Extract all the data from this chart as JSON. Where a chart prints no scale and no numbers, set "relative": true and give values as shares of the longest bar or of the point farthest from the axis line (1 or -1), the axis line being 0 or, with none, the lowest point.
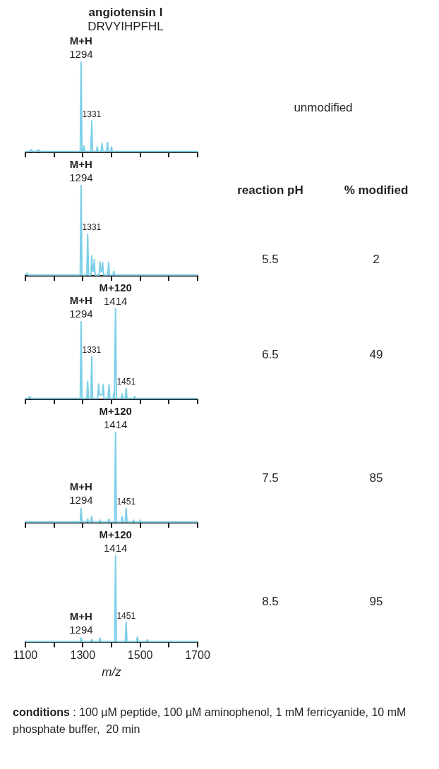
{
  "chart_data": [
    {
      "type": "line",
      "title": "angiotensin I",
      "subtitle": "DRVYIHPFHL",
      "relative": true,
      "xlim": [
        1100,
        1700
      ],
      "xticks": [
        1100,
        1200,
        1300,
        1400,
        1500,
        1600,
        1700
      ],
      "tick_labels": false,
      "series": [
        {
          "color": "#7ccfe8",
          "x": [
            1100,
            1115,
            1120,
            1125,
            1140,
            1145,
            1150,
            1291,
            1294,
            1297,
            1301,
            1304,
            1307,
            1328,
            1331,
            1334,
            1347,
            1350,
            1353,
            1364,
            1367,
            1370,
            1383,
            1386,
            1389,
            1397,
            1400,
            1403,
            1420,
            1700
          ],
          "values": [
            0.01,
            0.01,
            0.03,
            0.01,
            0.01,
            0.03,
            0.01,
            0.01,
            1,
            0.01,
            0.01,
            0.07,
            0.01,
            0.01,
            0.35,
            0.01,
            0.01,
            0.06,
            0.01,
            0.01,
            0.1,
            0.01,
            0.01,
            0.11,
            0.01,
            0.01,
            0.06,
            0.01,
            0.01,
            0.01
          ]
        }
      ],
      "annotations": [
        {
          "text": "M+H",
          "x": 1294,
          "y": 1
        },
        {
          "text": "1294",
          "x": 1294,
          "y": 1
        },
        {
          "text": "1331",
          "x": 1331,
          "y": 0.35
        },
        "unmodified"
      ]
    },
    {
      "type": "line",
      "relative": true,
      "xlim": [
        1100,
        1700
      ],
      "xticks": [
        1100,
        1200,
        1300,
        1400,
        1500,
        1600,
        1700
      ],
      "tick_labels": false,
      "series": [
        {
          "color": "#7ccfe8",
          "x": [
            1100,
            1105,
            1110,
            1115,
            1291,
            1294,
            1297,
            1314,
            1317,
            1320,
            1328,
            1331,
            1334,
            1337,
            1340,
            1343,
            1357,
            1360,
            1363,
            1366,
            1369,
            1372,
            1387,
            1390,
            1393,
            1405,
            1408,
            1411,
            1430,
            1700
          ],
          "values": [
            0.01,
            0.03,
            0.01,
            0.01,
            0.01,
            1,
            0.01,
            0.01,
            0.46,
            0.01,
            0.01,
            0.22,
            0.05,
            0.05,
            0.18,
            0.01,
            0.01,
            0.15,
            0.05,
            0.05,
            0.15,
            0.01,
            0.01,
            0.15,
            0.01,
            0.01,
            0.05,
            0.01,
            0.01,
            0.01
          ]
        }
      ],
      "annotations": [
        {
          "text": "M+H",
          "x": 1294,
          "y": 1
        },
        {
          "text": "1294",
          "x": 1294,
          "y": 1
        },
        {
          "text": "1331",
          "x": 1331,
          "y": 0.46
        },
        "reaction pH",
        "% modified",
        "5.5",
        "2"
      ]
    },
    {
      "type": "line",
      "relative": true,
      "xlim": [
        1100,
        1700
      ],
      "xticks": [
        1100,
        1200,
        1300,
        1400,
        1500,
        1600,
        1700
      ],
      "tick_labels": false,
      "series": [
        {
          "color": "#7ccfe8",
          "x": [
            1100,
            1110,
            1115,
            1120,
            1291,
            1294,
            1297,
            1314,
            1317,
            1320,
            1328,
            1331,
            1334,
            1352,
            1355,
            1358,
            1368,
            1371,
            1374,
            1388,
            1391,
            1394,
            1406,
            1408,
            1410,
            1411,
            1414,
            1417,
            1434,
            1437,
            1440,
            1448,
            1451,
            1454,
            1477,
            1480,
            1483,
            1700
          ],
          "values": [
            0.01,
            0.01,
            0.03,
            0.01,
            0.01,
            0.86,
            0.01,
            0.01,
            0.2,
            0.01,
            0.01,
            0.47,
            0.01,
            0.01,
            0.17,
            0.05,
            0.05,
            0.16,
            0.01,
            0.01,
            0.16,
            0.01,
            0.01,
            0.07,
            0.01,
            0.01,
            1,
            0.01,
            0.01,
            0.06,
            0.01,
            0.01,
            0.12,
            0.01,
            0.01,
            0.03,
            0.01,
            0.01
          ]
        }
      ],
      "annotations": [
        {
          "text": "M+H",
          "x": 1294,
          "y": 0.86
        },
        {
          "text": "1294",
          "x": 1294,
          "y": 0.86
        },
        {
          "text": "M+120",
          "x": 1414,
          "y": 1
        },
        {
          "text": "1414",
          "x": 1414,
          "y": 1
        },
        {
          "text": "1331",
          "x": 1331,
          "y": 0.47
        },
        {
          "text": "1451",
          "x": 1451,
          "y": 0.12
        },
        "6.5",
        "49"
      ]
    },
    {
      "type": "line",
      "relative": true,
      "xlim": [
        1100,
        1700
      ],
      "xticks": [
        1100,
        1200,
        1300,
        1400,
        1500,
        1600,
        1700
      ],
      "tick_labels": false,
      "series": [
        {
          "color": "#7ccfe8",
          "x": [
            1100,
            1291,
            1294,
            1297,
            1314,
            1317,
            1320,
            1328,
            1331,
            1334,
            1357,
            1360,
            1363,
            1388,
            1391,
            1394,
            1411,
            1414,
            1417,
            1434,
            1437,
            1440,
            1448,
            1451,
            1454,
            1474,
            1477,
            1480,
            1497,
            1500,
            1503,
            1700
          ],
          "values": [
            0.01,
            0.01,
            0.16,
            0.01,
            0.01,
            0.04,
            0.01,
            0.01,
            0.07,
            0.01,
            0.01,
            0.03,
            0.01,
            0.01,
            0.04,
            0.01,
            0.01,
            1,
            0.01,
            0.01,
            0.07,
            0.01,
            0.01,
            0.16,
            0.01,
            0.01,
            0.03,
            0.01,
            0.01,
            0.03,
            0.01,
            0.01
          ]
        }
      ],
      "annotations": [
        {
          "text": "M+H",
          "x": 1294,
          "y": 0.16
        },
        {
          "text": "1294",
          "x": 1294,
          "y": 0.16
        },
        {
          "text": "M+120",
          "x": 1414,
          "y": 1
        },
        {
          "text": "1414",
          "x": 1414,
          "y": 1
        },
        {
          "text": "1451",
          "x": 1451,
          "y": 0.16
        },
        "7.5",
        "85"
      ]
    },
    {
      "type": "line",
      "relative": true,
      "xlim": [
        1100,
        1700
      ],
      "xticks": [
        1100,
        {
          "value": 1200,
          "label": null
        },
        1300,
        {
          "value": 1400,
          "label": null
        },
        1500,
        {
          "value": 1600,
          "label": null
        },
        1700
      ],
      "tick_labels": "x",
      "xlabel": "m/z",
      "series": [
        {
          "color": "#7ccfe8",
          "x": [
            1100,
            1291,
            1294,
            1297,
            1328,
            1331,
            1334,
            1357,
            1360,
            1363,
            1411,
            1414,
            1417,
            1448,
            1451,
            1454,
            1487,
            1490,
            1493,
            1522,
            1525,
            1528,
            1700
          ],
          "values": [
            0.01,
            0.01,
            0.05,
            0.01,
            0.01,
            0.03,
            0.01,
            0.01,
            0.05,
            0.01,
            0.01,
            1,
            0.01,
            0.01,
            0.23,
            0.01,
            0.01,
            0.06,
            0.01,
            0.01,
            0.03,
            0.01,
            0.01
          ]
        }
      ],
      "annotations": [
        {
          "text": "M+H",
          "x": 1294,
          "y": 0.05
        },
        {
          "text": "1294",
          "x": 1294,
          "y": 0.05
        },
        {
          "text": "M+120",
          "x": 1414,
          "y": 1
        },
        {
          "text": "1414",
          "x": 1414,
          "y": 1
        },
        {
          "text": "1451",
          "x": 1451,
          "y": 0.23
        },
        "8.5",
        "95"
      ]
    },
    {
      "type": "other",
      "annotations": [
        "conditions",
        ": 100 µM peptide, 100 µM aminophenol, 1 mM ferricyanide, 10 mM phosphate buffer,  20 min"
      ]
    }
  ]
}
